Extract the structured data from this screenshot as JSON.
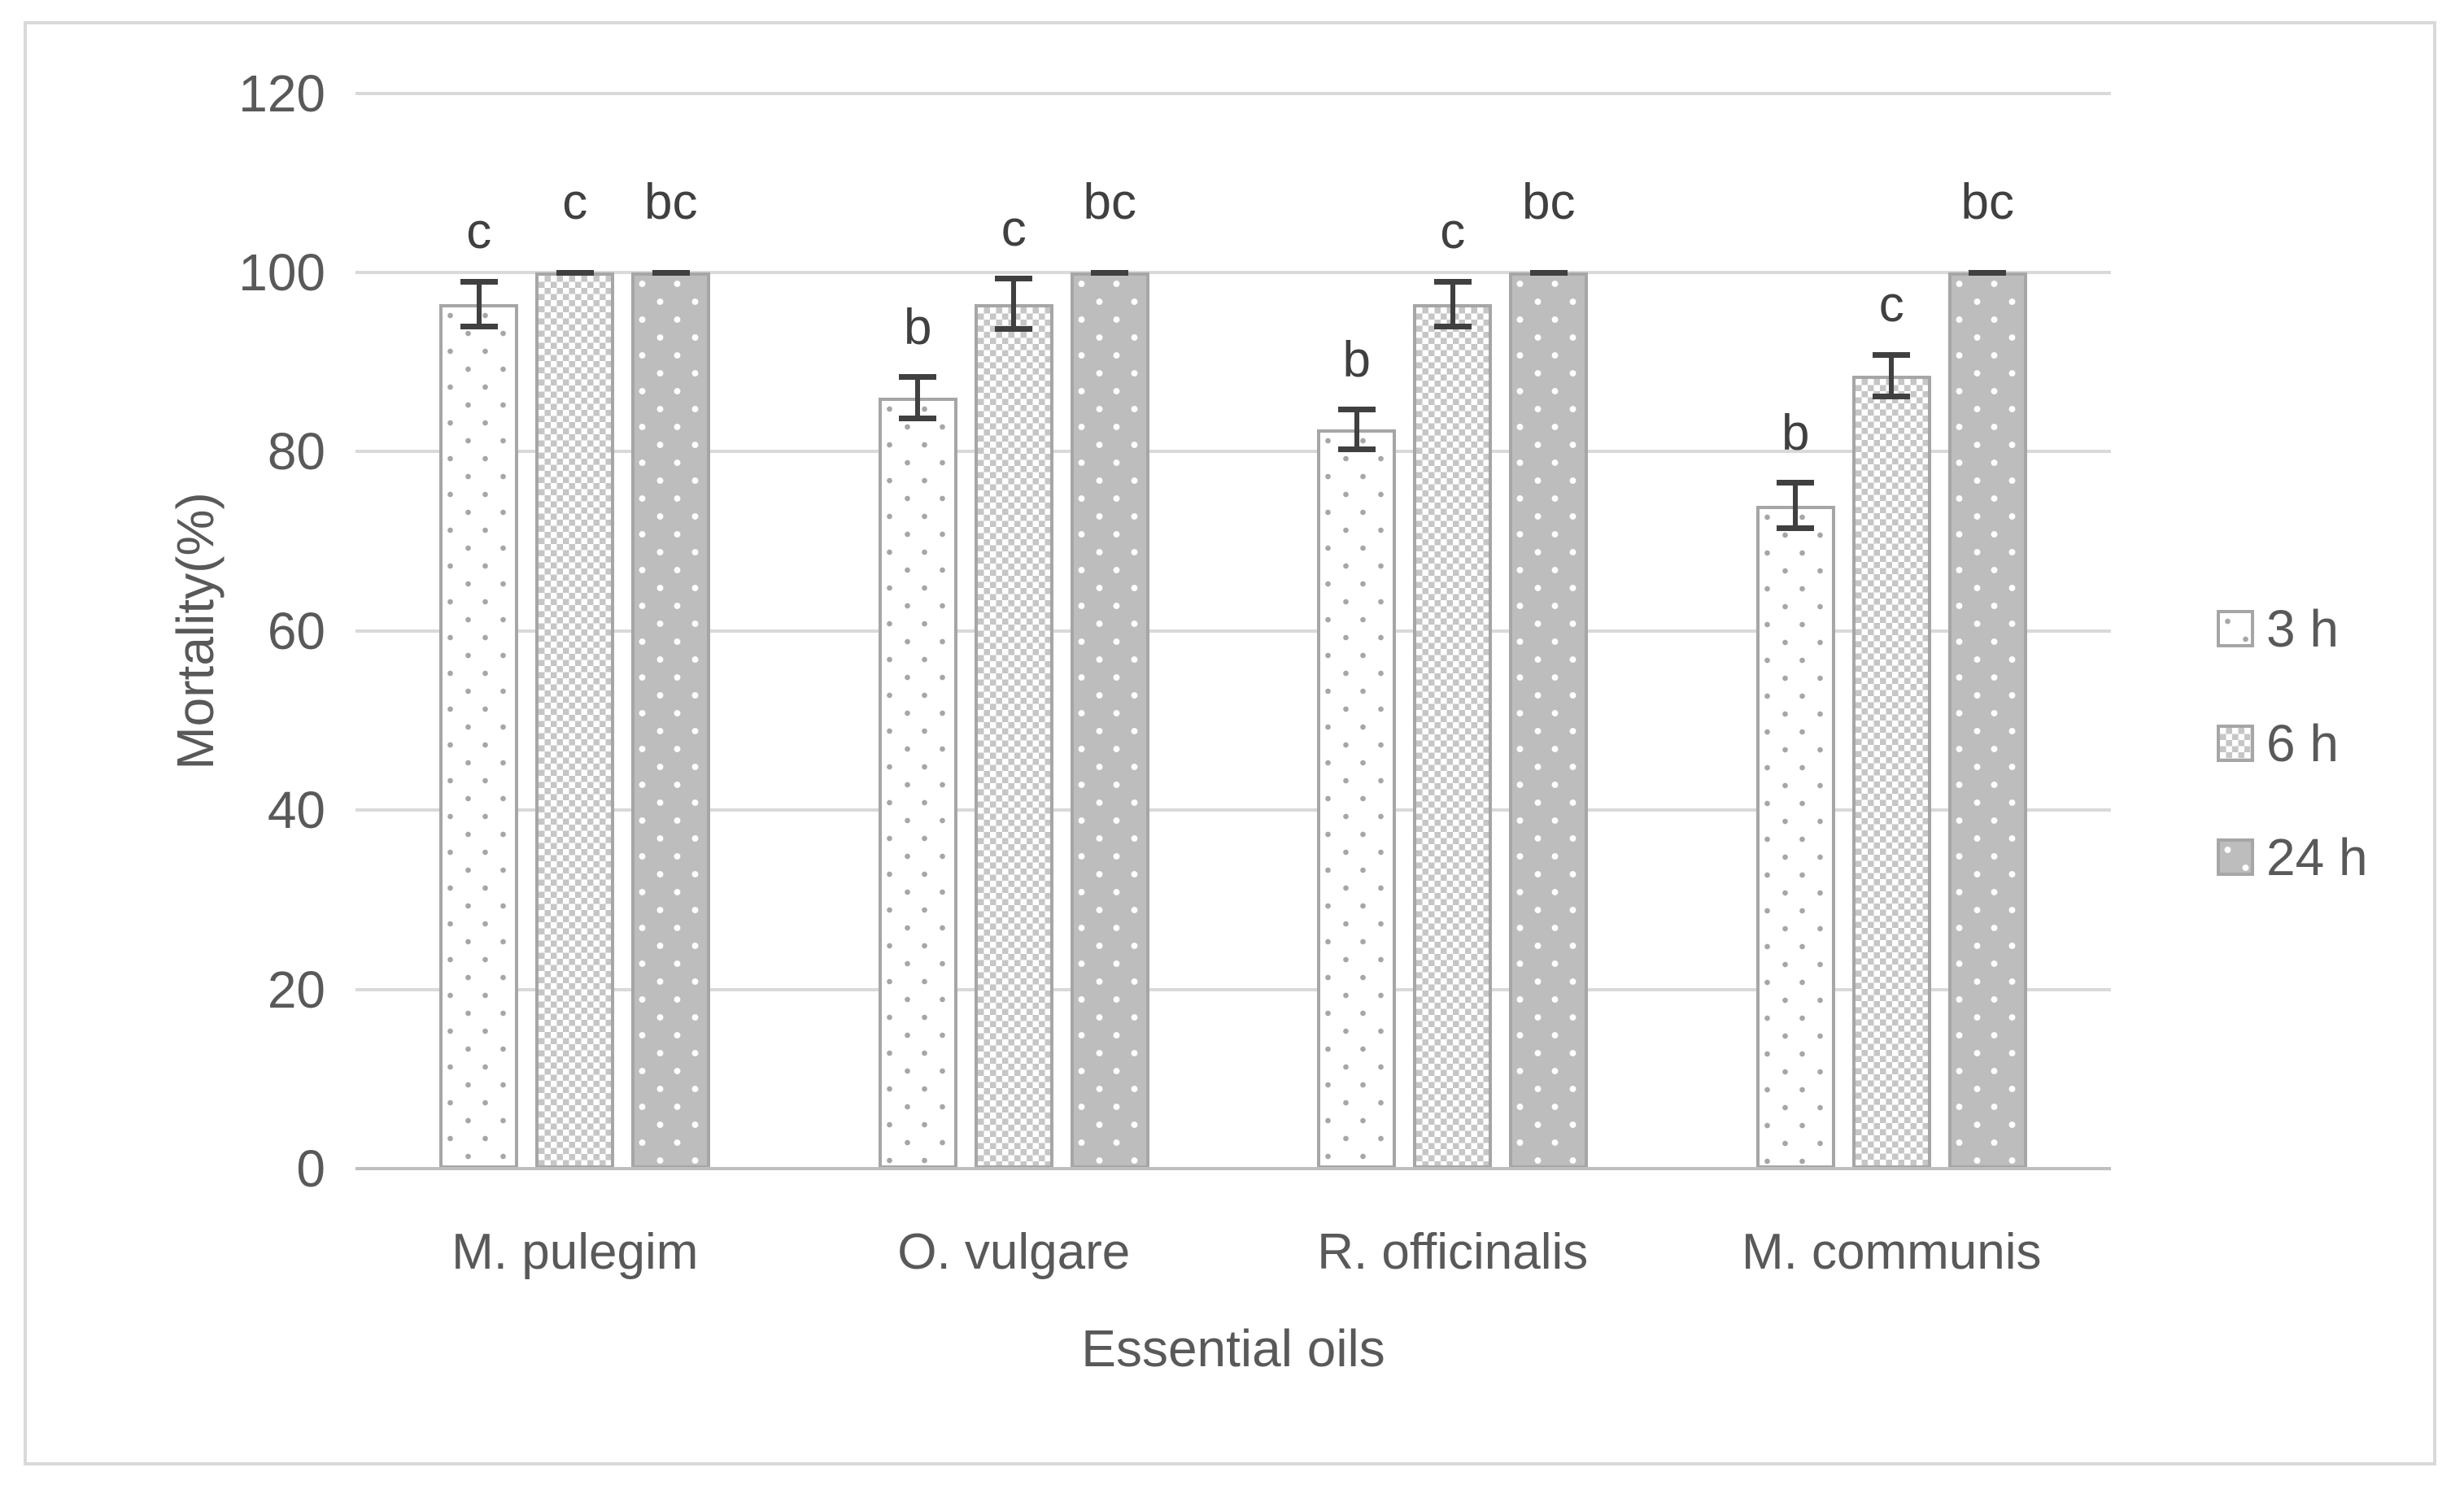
{
  "figure": {
    "background": "#ffffff",
    "border_color": "#d9d9d9"
  },
  "chart_data": {
    "type": "bar",
    "title": "",
    "xlabel": "Essential oils",
    "ylabel": "Mortality(%)",
    "ylim": [
      0,
      120
    ],
    "yticks": [
      0,
      20,
      40,
      60,
      80,
      100,
      120
    ],
    "grid": true,
    "legend_position": "right",
    "categories": [
      "M. pulegim",
      "O. vulgare",
      "R. officinalis",
      "M. communis"
    ],
    "series": [
      {
        "name": "3 h",
        "pattern": "dots-light",
        "values": [
          96.5,
          86,
          82.5,
          74
        ],
        "errors": [
          2.5,
          2.3,
          2.2,
          2.5
        ],
        "letters": [
          "c",
          "b",
          "b",
          "b"
        ]
      },
      {
        "name": "6 h",
        "pattern": "trellis",
        "values": [
          100,
          96.5,
          96.5,
          88.5
        ],
        "errors": [
          0,
          2.8,
          2.5,
          2.3
        ],
        "letters": [
          "c",
          "c",
          "c",
          "c"
        ]
      },
      {
        "name": "24 h",
        "pattern": "dots-dark",
        "values": [
          100,
          100,
          100,
          100
        ],
        "errors": [
          0,
          0,
          0,
          0
        ],
        "letters": [
          "bc",
          "bc",
          "bc",
          "bc"
        ]
      }
    ],
    "colors": {
      "bar_border": "#a6a6a6",
      "dark_fill": "#bdbdbd",
      "dot_gray": "#a6a6a6",
      "trellis_gray": "#c6c6c6",
      "error_bar": "#404040",
      "letter": "#404040",
      "gridline": "#d9d9d9",
      "axis_line": "#bfbfbf",
      "text": "#595959"
    }
  }
}
